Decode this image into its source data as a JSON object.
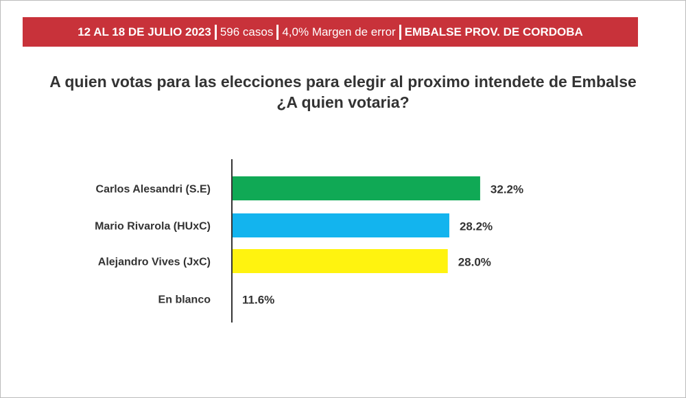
{
  "header": {
    "dates": "12 AL 18 DE JULIO 2023",
    "cases": "596 casos",
    "margin": "4,0% Margen de error",
    "location": "EMBALSE PROV. DE CORDOBA",
    "color": "#c8323a"
  },
  "chart_data": {
    "type": "bar",
    "orientation": "horizontal",
    "title": "A quien votas para las elecciones para elegir al proximo intendete de Embalse ¿A quien votaria?",
    "categories": [
      "Carlos Alesandri (S.E)",
      "Mario Rivarola (HUxC)",
      "Alejandro Vives (JxC)",
      "En blanco"
    ],
    "values": [
      32.2,
      28.2,
      28.0,
      11.6
    ],
    "value_labels": [
      "32.2%",
      "28.2%",
      "28.0%",
      "11.6%"
    ],
    "colors": [
      "#10a955",
      "#13b4ee",
      "#fff30f",
      "#ffffff"
    ],
    "unit": "%",
    "grid": false
  }
}
